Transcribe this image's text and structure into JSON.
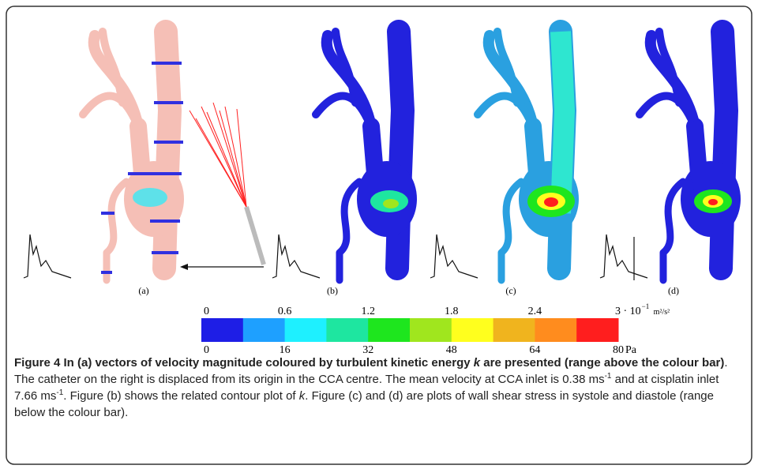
{
  "panel_labels": [
    "(a)",
    "(b)",
    "(c)",
    "(d)"
  ],
  "colorbar": {
    "colors": [
      "#1e1ee6",
      "#1ea0ff",
      "#1ef0ff",
      "#1ee6a0",
      "#1ee61e",
      "#a0e61e",
      "#ffff1e",
      "#f0b41e",
      "#ff8c1e",
      "#ff1e1e"
    ],
    "top_labels": [
      "0",
      "0.6",
      "1.2",
      "1.8",
      "2.4",
      "3 · 10"
    ],
    "top_exponent": "−1",
    "top_unit": "m²/s²",
    "bottom_labels": [
      "0",
      "16",
      "32",
      "48",
      "64",
      "80"
    ],
    "bottom_unit": "Pa"
  },
  "caption": [
    "Figure 4 In (a) vectors of velocity magnitude coloured by turbulent kinetic energy ",
    "k",
    " are presented (range above the colour bar)",
    ". The catheter on the right is displaced from its origin in the CCA centre. The mean velocity at CCA inlet is 0.38 ms",
    "-1",
    " and at cisplatin inlet 7.66 ms",
    "-1",
    ". Figure (b) shows the related contour plot of ",
    "k",
    ". Figure (c) and (d) are plots of wall shear stress in systole and diastole (range below the colour bar)."
  ]
}
